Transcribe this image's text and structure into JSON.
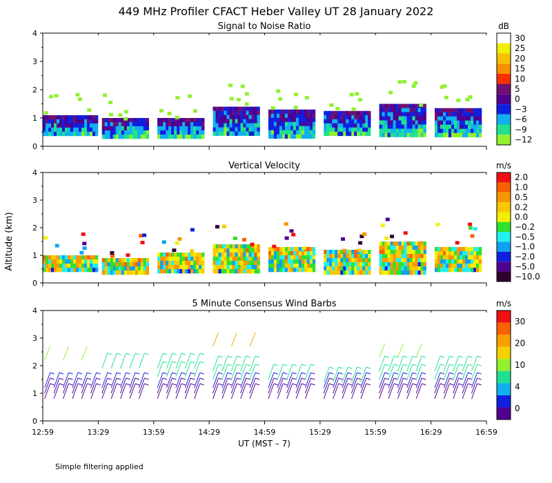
{
  "title": "449 MHz Profiler CFACT Heber Valley UT 28 January 2022",
  "y_axis_label": "Altitude (km)",
  "x_axis_label": "UT  (MST – 7)",
  "footer_note": "Simple filtering applied",
  "chart_data": [
    {
      "type": "heatmap",
      "title": "Signal to Noise Ratio",
      "xlabel": "UT  (MST – 7)",
      "ylabel": "Altitude (km)",
      "ylim": [
        0,
        4
      ],
      "yticks": [
        "0",
        "1",
        "2",
        "3",
        "4"
      ],
      "colorbar": {
        "unit": "dB",
        "labels": [
          "30",
          "25",
          "20",
          "15",
          "10",
          "5",
          "0",
          "−3",
          "−6",
          "−9",
          "−12"
        ],
        "colors": [
          "#ffffff",
          "#f0f000",
          "#f8c000",
          "#f89000",
          "#f83000",
          "#701070",
          "#500090",
          "#1020e0",
          "#10b0f0",
          "#20e090",
          "#90f030"
        ]
      },
      "segments": [
        {
          "start": "12:59",
          "end": "13:28",
          "top_km": 1.1,
          "base_km": 0.4
        },
        {
          "start": "13:31",
          "end": "13:56",
          "top_km": 1.0,
          "base_km": 0.4
        },
        {
          "start": "14:01",
          "end": "14:25",
          "top_km": 1.0,
          "base_km": 0.4
        },
        {
          "start": "14:31",
          "end": "14:55",
          "top_km": 1.4,
          "base_km": 0.4
        },
        {
          "start": "15:01",
          "end": "15:25",
          "top_km": 1.3,
          "base_km": 0.4
        },
        {
          "start": "15:31",
          "end": "15:55",
          "top_km": 1.25,
          "base_km": 0.4
        },
        {
          "start": "16:01",
          "end": "16:25",
          "top_km": 1.5,
          "base_km": 0.4
        },
        {
          "start": "16:31",
          "end": "16:55",
          "top_km": 1.35,
          "base_km": 0.4
        }
      ]
    },
    {
      "type": "heatmap",
      "title": "Vertical Velocity",
      "xlabel": "UT  (MST – 7)",
      "ylabel": "Altitude (km)",
      "ylim": [
        0,
        4
      ],
      "yticks": [
        "0",
        "1",
        "2",
        "3",
        "4"
      ],
      "colorbar": {
        "unit": "m/s",
        "labels": [
          "2.0",
          "1.0",
          "0.5",
          "0.2",
          "0.0",
          "−0.2",
          "−0.5",
          "−1.0",
          "−2.0",
          "−5.0",
          "−10.0"
        ],
        "colors": [
          "#f01010",
          "#f86000",
          "#f89800",
          "#f8c800",
          "#f0f000",
          "#30e030",
          "#20f0f0",
          "#10a0f0",
          "#1020e0",
          "#500090",
          "#300030"
        ]
      },
      "segments": [
        {
          "start": "12:59",
          "end": "13:28",
          "top_km": 1.0,
          "base_km": 0.4
        },
        {
          "start": "13:31",
          "end": "13:56",
          "top_km": 0.9,
          "base_km": 0.4
        },
        {
          "start": "14:01",
          "end": "14:25",
          "top_km": 1.1,
          "base_km": 0.4
        },
        {
          "start": "14:31",
          "end": "14:55",
          "top_km": 1.4,
          "base_km": 0.4
        },
        {
          "start": "15:01",
          "end": "15:25",
          "top_km": 1.3,
          "base_km": 0.4
        },
        {
          "start": "15:31",
          "end": "15:55",
          "top_km": 1.2,
          "base_km": 0.4
        },
        {
          "start": "16:01",
          "end": "16:25",
          "top_km": 1.5,
          "base_km": 0.4
        },
        {
          "start": "16:31",
          "end": "16:55",
          "top_km": 1.3,
          "base_km": 0.4
        }
      ]
    },
    {
      "type": "scatter",
      "title": "5 Minute Consensus Wind Barbs",
      "xlabel": "UT  (MST – 7)",
      "ylabel": "Altitude (km)",
      "ylim": [
        0,
        4
      ],
      "yticks": [
        "0",
        "1",
        "2",
        "3",
        "4"
      ],
      "colorbar": {
        "unit": "m/s",
        "labels": [
          "30",
          "20",
          "10",
          "4",
          "0"
        ],
        "colors": [
          "#f01010",
          "#f86000",
          "#f8a000",
          "#f8d000",
          "#90f030",
          "#20e090",
          "#10b0f0",
          "#1020e0",
          "#500090"
        ]
      },
      "segments": [
        {
          "start": "13:00",
          "end": "13:25",
          "levels_km": [
            0.8,
            1.0,
            1.2
          ],
          "upper_km": 2.2
        },
        {
          "start": "13:31",
          "end": "13:55",
          "levels_km": [
            0.8,
            1.0,
            1.2,
            1.9
          ],
          "upper_km": null
        },
        {
          "start": "14:01",
          "end": "14:25",
          "levels_km": [
            0.8,
            1.0,
            1.2,
            1.6,
            1.9
          ],
          "upper_km": null
        },
        {
          "start": "14:31",
          "end": "14:55",
          "levels_km": [
            0.8,
            1.0,
            1.2,
            1.5,
            1.8
          ],
          "upper_km": 2.7
        },
        {
          "start": "15:01",
          "end": "15:25",
          "levels_km": [
            0.8,
            1.0,
            1.2,
            1.5
          ],
          "upper_km": null
        },
        {
          "start": "15:31",
          "end": "15:55",
          "levels_km": [
            0.8,
            1.0,
            1.2,
            1.4
          ],
          "upper_km": null
        },
        {
          "start": "16:01",
          "end": "16:25",
          "levels_km": [
            0.8,
            1.0,
            1.2,
            1.5,
            1.8
          ],
          "upper_km": 2.3
        },
        {
          "start": "16:31",
          "end": "16:55",
          "levels_km": [
            0.8,
            1.0,
            1.2,
            1.5,
            1.8
          ],
          "upper_km": null
        }
      ]
    }
  ],
  "x_ticks": [
    "12:59",
    "13:29",
    "13:59",
    "14:29",
    "14:59",
    "15:29",
    "15:59",
    "16:29",
    "16:59"
  ],
  "x_range": [
    "12:59",
    "16:59"
  ]
}
